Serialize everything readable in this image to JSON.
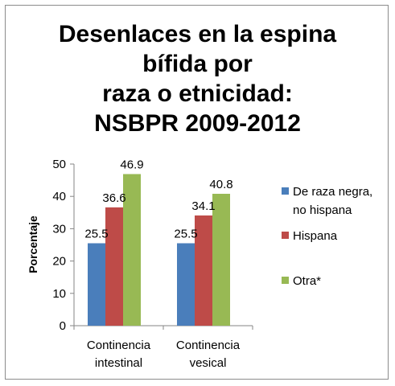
{
  "chart_data": {
    "type": "bar",
    "title_lines": [
      "Desenlaces en la espina",
      "bífida por",
      "raza o etnicidad:",
      "NSBPR 2009-2012"
    ],
    "ylabel": "Porcentaje",
    "xlabel": "",
    "ylim": [
      0,
      50
    ],
    "yticks": [
      0,
      10,
      20,
      30,
      40,
      50
    ],
    "categories": [
      {
        "lines": [
          "Continencia",
          "intestinal"
        ]
      },
      {
        "lines": [
          "Continencia",
          "vesical"
        ]
      }
    ],
    "series": [
      {
        "name_lines": [
          "De raza negra,",
          "no hispana"
        ],
        "color": "#4a7ebb",
        "values": [
          25.5,
          25.5
        ],
        "labels": [
          "25.5",
          "25.5"
        ]
      },
      {
        "name_lines": [
          "Hispana"
        ],
        "color": "#be4b48",
        "values": [
          36.6,
          34.1
        ],
        "labels": [
          "36.6",
          "34.1"
        ]
      },
      {
        "name_lines": [
          "Otra*"
        ],
        "color": "#98b954",
        "values": [
          46.9,
          40.8
        ],
        "labels": [
          "46.9",
          "40.8"
        ]
      }
    ],
    "legend_position": "right",
    "grid": false
  }
}
